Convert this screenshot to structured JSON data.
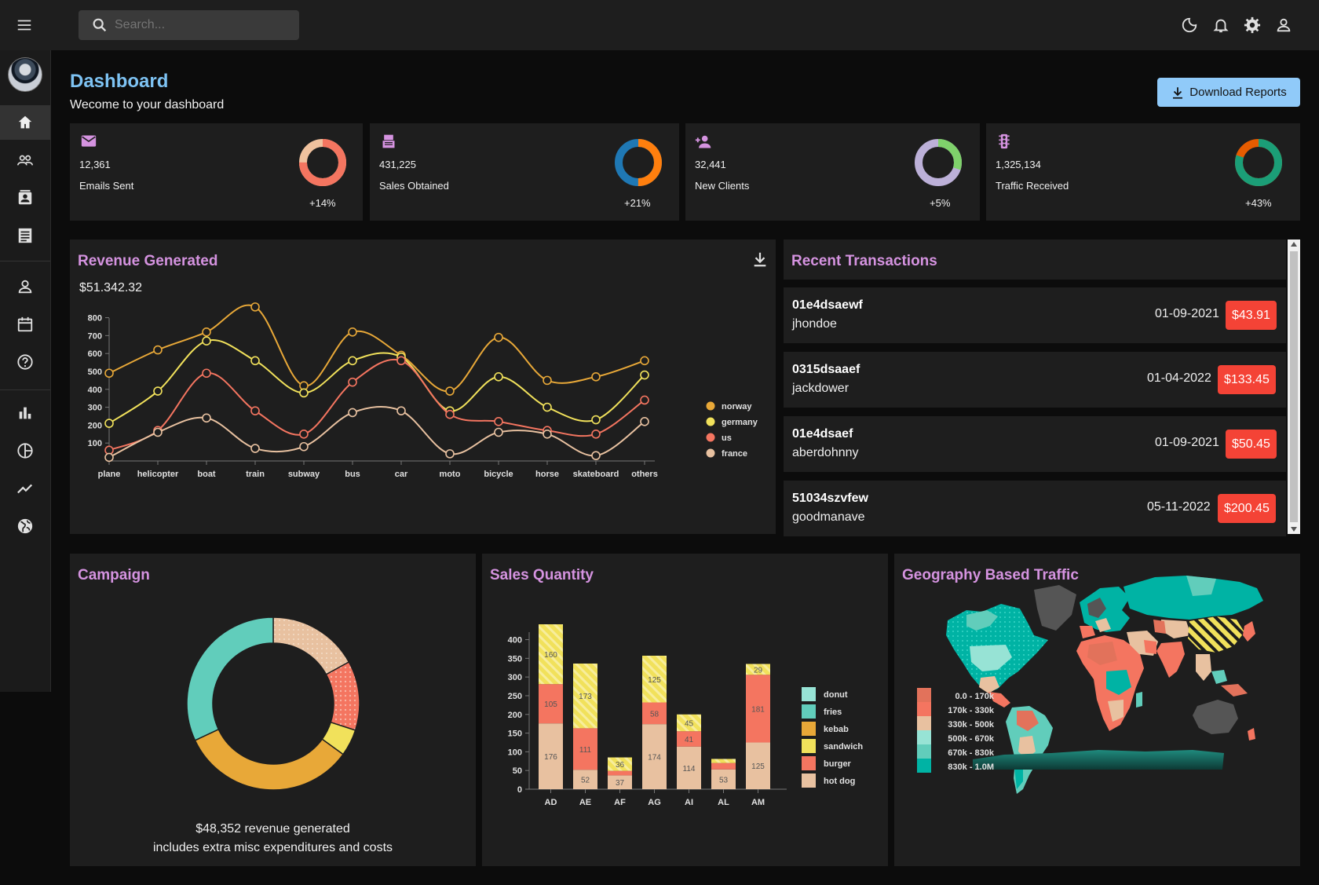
{
  "topbar": {
    "search_placeholder": "Search...",
    "icons": [
      "menu-icon",
      "search-icon",
      "dark-mode-icon",
      "notifications-icon",
      "settings-icon",
      "person-icon"
    ]
  },
  "sidebar": {
    "items": [
      "home-icon",
      "team-icon",
      "contacts-icon",
      "invoices-icon",
      "profile-icon",
      "calendar-icon",
      "faq-icon",
      "bar-chart-icon",
      "pie-chart-icon",
      "line-chart-icon",
      "geography-icon"
    ]
  },
  "header": {
    "title": "Dashboard",
    "subtitle": "Wecome to your dashboard",
    "download_label": "Download Reports"
  },
  "stats": [
    {
      "value": "12,361",
      "label": "Emails Sent",
      "increase": "+14%",
      "icon": "email-icon",
      "progress": 0.75
    },
    {
      "value": "431,225",
      "label": "Sales Obtained",
      "increase": "+21%",
      "icon": "point-of-sale-icon",
      "progress": 0.5
    },
    {
      "value": "32,441",
      "label": "New Clients",
      "increase": "+5%",
      "icon": "person-add-icon",
      "progress": 0.3
    },
    {
      "value": "1,325,134",
      "label": "Traffic Received",
      "increase": "+43%",
      "icon": "traffic-icon",
      "progress": 0.8
    }
  ],
  "revenue": {
    "title": "Revenue Generated",
    "amount": "$51.342.32"
  },
  "transactions": {
    "title": "Recent Transactions",
    "items": [
      {
        "id": "01e4dsaewf",
        "user": "jhondoe",
        "date": "01-09-2021",
        "cost": "$43.91"
      },
      {
        "id": "0315dsaaef",
        "user": "jackdower",
        "date": "01-04-2022",
        "cost": "$133.45"
      },
      {
        "id": "01e4dsaef",
        "user": "aberdohnny",
        "date": "01-09-2021",
        "cost": "$50.45"
      },
      {
        "id": "51034szvfew",
        "user": "goodmanave",
        "date": "05-11-2022",
        "cost": "$200.45"
      }
    ]
  },
  "campaign": {
    "title": "Campaign",
    "line1": "$48,352 revenue generated",
    "line2": "includes extra misc expenditures and costs",
    "chart_data": {
      "type": "pie",
      "slices": [
        {
          "color": "#e8c1a0",
          "value": 0.17
        },
        {
          "color": "#f47560",
          "value": 0.13
        },
        {
          "color": "#f1e15b",
          "value": 0.05
        },
        {
          "color": "#e8a838",
          "value": 0.33
        },
        {
          "color": "#61cdbb",
          "value": 0.32
        }
      ]
    }
  },
  "sales": {
    "title": "Sales Quantity"
  },
  "geo": {
    "title": "Geography Based Traffic",
    "legend": [
      "0.0 - 170k",
      "170k - 330k",
      "330k - 500k",
      "500k - 670k",
      "670k - 830k",
      "830k - 1.0M"
    ],
    "legend_colors": [
      "#e2725b",
      "#f47560",
      "#e8c1a0",
      "#97e3d5",
      "#61cdbb",
      "#00b3a4"
    ]
  },
  "chart_data": [
    {
      "type": "line",
      "categories": [
        "plane",
        "helicopter",
        "boat",
        "train",
        "subway",
        "bus",
        "car",
        "moto",
        "bicycle",
        "horse",
        "skateboard",
        "others"
      ],
      "ylim": [
        0,
        850
      ],
      "yticks": [
        100,
        200,
        300,
        400,
        500,
        600,
        700,
        800
      ],
      "series": [
        {
          "name": "norway",
          "color": "#e8a838",
          "values": [
            490,
            620,
            720,
            860,
            420,
            720,
            590,
            390,
            690,
            450,
            470,
            560
          ]
        },
        {
          "name": "germany",
          "color": "#f1e15b",
          "values": [
            210,
            390,
            670,
            560,
            380,
            560,
            580,
            280,
            470,
            300,
            230,
            480
          ]
        },
        {
          "name": "us",
          "color": "#f47560",
          "values": [
            60,
            170,
            490,
            280,
            150,
            440,
            560,
            260,
            220,
            170,
            150,
            340
          ]
        },
        {
          "name": "france",
          "color": "#e8c1a0",
          "values": [
            20,
            160,
            240,
            70,
            80,
            270,
            280,
            40,
            160,
            150,
            30,
            220
          ]
        }
      ]
    },
    {
      "type": "bar",
      "categories": [
        "AD",
        "AE",
        "AF",
        "AG",
        "AI",
        "AL",
        "AM"
      ],
      "ylim": [
        0,
        420
      ],
      "yticks": [
        0,
        50,
        100,
        150,
        200,
        250,
        300,
        350,
        400
      ],
      "series": [
        {
          "name": "hot dog",
          "color": "#e8c1a0",
          "values": [
            176,
            52,
            37,
            174,
            114,
            53,
            125
          ]
        },
        {
          "name": "burger",
          "color": "#f47560",
          "values": [
            105,
            111,
            12,
            58,
            41,
            17,
            181
          ]
        },
        {
          "name": "sandwich",
          "color": "#f1e15b",
          "values": [
            160,
            173,
            36,
            125,
            45,
            11,
            29
          ]
        },
        {
          "name": "kebab",
          "color": "#e8a838",
          "values": [
            0,
            0,
            0,
            0,
            0,
            0,
            0
          ]
        },
        {
          "name": "fries",
          "color": "#61cdbb",
          "values": [
            0,
            0,
            0,
            0,
            0,
            0,
            0
          ]
        },
        {
          "name": "donut",
          "color": "#97e3d5",
          "values": [
            0,
            0,
            0,
            0,
            0,
            0,
            0
          ]
        }
      ],
      "legend_order": [
        "donut",
        "fries",
        "kebab",
        "sandwich",
        "burger",
        "hot dog"
      ]
    }
  ]
}
